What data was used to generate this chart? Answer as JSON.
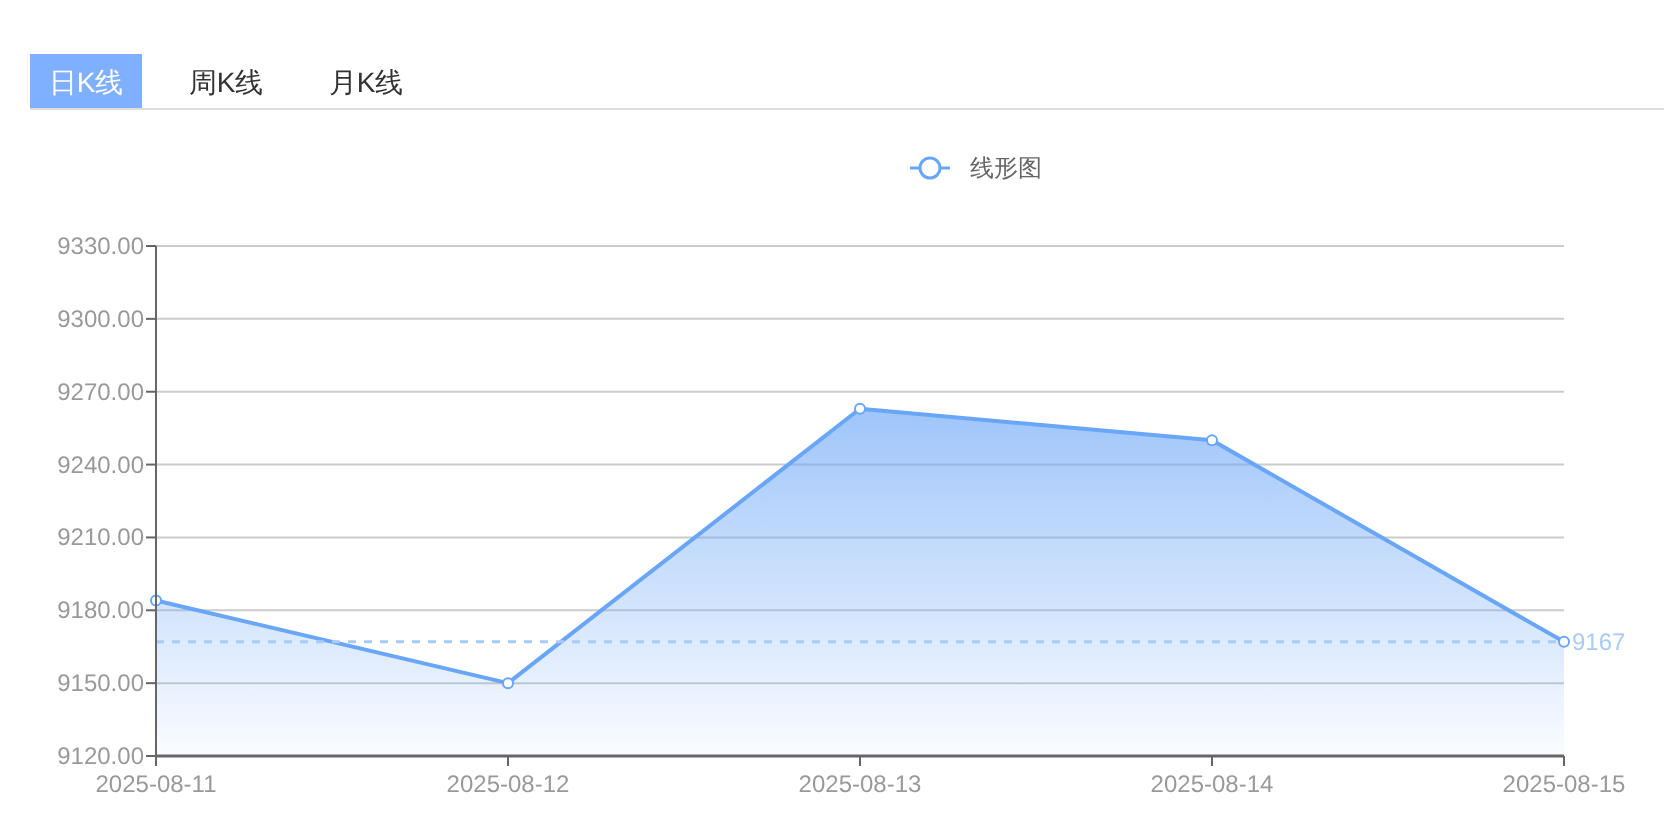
{
  "chart_data": {
    "type": "area",
    "categories": [
      "2025-08-11",
      "2025-08-12",
      "2025-08-13",
      "2025-08-14",
      "2025-08-15"
    ],
    "series": [
      {
        "name": "线形图",
        "color": "#6aa6f7",
        "values": [
          9184,
          9150,
          9263,
          9250,
          9167
        ]
      }
    ],
    "ylim": [
      9120,
      9330
    ],
    "yticks": [
      {
        "value": 9120,
        "label": "9120.00"
      },
      {
        "value": 9150,
        "label": "9150.00"
      },
      {
        "value": 9180,
        "label": "9180.00"
      },
      {
        "value": 9210,
        "label": "9210.00"
      },
      {
        "value": 9240,
        "label": "9240.00"
      },
      {
        "value": 9270,
        "label": "9270.00"
      },
      {
        "value": 9300,
        "label": "9300.00"
      },
      {
        "value": 9330,
        "label": "9330.00"
      }
    ],
    "ref_lines": [
      {
        "axis": "y",
        "value": 9167,
        "label": "9167",
        "color": "#a9cbf9",
        "line_style": "dashed"
      }
    ],
    "annotations": [
      "日K线",
      "周K线",
      "月K线"
    ],
    "grid": "y",
    "legend": "top",
    "marker": "circle",
    "line_style": "solid"
  }
}
